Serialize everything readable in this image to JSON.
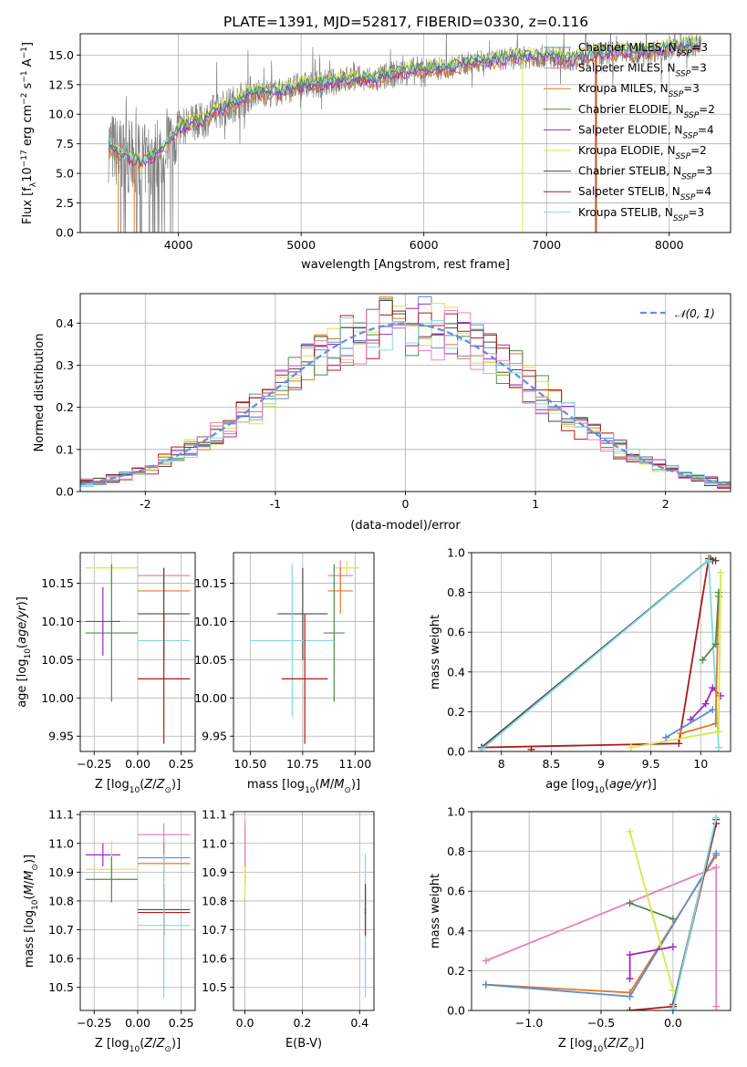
{
  "figure": {
    "title": "PLATE=1391, MJD=52817, FIBERID=0330, z=0.116"
  },
  "colors": {
    "gray": "#808080",
    "blue": "#5b8ed6",
    "orange": "#e07b28",
    "green": "#4f8a4f",
    "purple": "#9c27c8",
    "yellow": "#d6e84a",
    "darkgray": "#4a4a4a",
    "red": "#b01818",
    "cyan": "#80dadf",
    "pink": "#e882b8"
  },
  "chart_data": [
    {
      "id": "spectrum",
      "type": "line",
      "xlabel": "wavelength [Angstrom, rest frame]",
      "ylabel": "Flux [f_λ10^-17 erg cm^-2 s^-1 A^-1]",
      "xlim": [
        3200,
        8500
      ],
      "ylim": [
        0,
        16.8
      ],
      "xticks": [
        4000,
        5000,
        6000,
        7000,
        8000
      ],
      "yticks": [
        0.0,
        2.5,
        5.0,
        7.5,
        10.0,
        12.5,
        15.0
      ],
      "legend_position": "right",
      "series": [
        {
          "name": "Chabrier MILES, N_SSP=3",
          "color": "blue"
        },
        {
          "name": "Salpeter MILES, N_SSP=3",
          "color": "pink"
        },
        {
          "name": "Kroupa MILES, N_SSP=3",
          "color": "orange"
        },
        {
          "name": "Chabrier ELODIE, N_SSP=2",
          "color": "green"
        },
        {
          "name": "Salpeter ELODIE, N_SSP=4",
          "color": "purple"
        },
        {
          "name": "Kroupa ELODIE, N_SSP=2",
          "color": "yellow"
        },
        {
          "name": "Chabrier STELIB, N_SSP=3",
          "color": "darkgray"
        },
        {
          "name": "Salpeter STELIB, N_SSP=4",
          "color": "red"
        },
        {
          "name": "Kroupa STELIB, N_SSP=3",
          "color": "cyan"
        }
      ],
      "model_curve": {
        "x": [
          3430,
          3500,
          3600,
          3700,
          3800,
          3900,
          4000,
          4100,
          4200,
          4300,
          4400,
          4500,
          4600,
          4800,
          5000,
          5200,
          5400,
          5600,
          5800,
          6000,
          6200,
          6400,
          6600,
          6800,
          7000,
          7200,
          7400,
          7600,
          7800,
          8000,
          8200,
          8260
        ],
        "y": [
          7.4,
          6.8,
          6.3,
          5.9,
          6.4,
          7.4,
          8.7,
          9.3,
          9.4,
          10.3,
          10.6,
          11.2,
          11.8,
          11.8,
          12.4,
          12.6,
          13.0,
          12.9,
          13.5,
          13.8,
          13.9,
          14.4,
          14.6,
          14.8,
          14.9,
          14.6,
          15.1,
          15.3,
          15.2,
          15.6,
          15.8,
          15.8
        ]
      },
      "fit_curves": [
        {
          "color": "orange",
          "dy": -0.3
        },
        {
          "color": "yellow",
          "dy": 0.4
        },
        {
          "color": "cyan",
          "dy": 0.1
        },
        {
          "color": "purple",
          "dy": -0.1
        },
        {
          "color": "green",
          "dy": 0.2
        }
      ]
    },
    {
      "id": "residual-histogram",
      "type": "line",
      "xlabel": "(data-model)/error",
      "ylabel": "Normed distribution",
      "xlim": [
        -2.5,
        2.5
      ],
      "ylim": [
        0,
        0.47
      ],
      "xticks": [
        -2,
        -1,
        0,
        1,
        2
      ],
      "yticks": [
        0.0,
        0.1,
        0.2,
        0.3,
        0.4
      ],
      "legend": "𝒩(0, 1)",
      "legend_position": "top-right",
      "bin_width": 0.1,
      "bin_start": -2.5,
      "hist_colors": [
        "blue",
        "orange",
        "green",
        "purple",
        "yellow",
        "darkgray",
        "red",
        "cyan",
        "pink"
      ]
    },
    {
      "id": "z-vs-age",
      "type": "scatter",
      "xlabel": "Z [log10(Z/Z⊙)]",
      "ylabel": "age [log10(age/yr)]",
      "xlim": [
        -0.33,
        0.33
      ],
      "ylim": [
        9.93,
        10.19
      ],
      "xticks": [
        -0.25,
        0.0,
        0.25
      ],
      "xticklabels": [
        "−0.25",
        "0.00",
        "0.25"
      ],
      "yticks": [
        9.95,
        10.0,
        10.05,
        10.1,
        10.15
      ],
      "yticklabels": [
        "9.95",
        "10.00",
        "10.05",
        "10.10",
        "10.15"
      ],
      "points": [
        {
          "x": -0.15,
          "xerr": 0.15,
          "y": 10.17,
          "yerr": 0.03,
          "color": "yellow"
        },
        {
          "x": -0.15,
          "xerr": 0.15,
          "y": 10.085,
          "yerr": 0.09,
          "color": "green"
        },
        {
          "x": -0.2,
          "xerr": 0.1,
          "y": 10.1,
          "yerr": 0.045,
          "color": "purple"
        },
        {
          "x": 0.15,
          "xerr": 0.15,
          "y": 10.16,
          "yerr": 0.01,
          "color": "pink"
        },
        {
          "x": 0.15,
          "xerr": 0.15,
          "y": 10.14,
          "yerr": 0.01,
          "color": "orange"
        },
        {
          "x": 0.15,
          "xerr": 0.15,
          "y": 10.11,
          "yerr": 0.06,
          "color": "darkgray"
        },
        {
          "x": 0.15,
          "xerr": 0.15,
          "y": 10.075,
          "yerr": 0.01,
          "color": "cyan"
        },
        {
          "x": 0.15,
          "xerr": 0.15,
          "y": 10.025,
          "yerr": 0.085,
          "color": "red"
        }
      ]
    },
    {
      "id": "mass-vs-age",
      "type": "scatter",
      "xlabel": "mass [log10(M/M⊙)]",
      "ylabel": "",
      "xlim": [
        10.42,
        11.09
      ],
      "ylim": [
        9.93,
        10.19
      ],
      "xticks": [
        10.5,
        10.75,
        11.0
      ],
      "xticklabels": [
        "10.50",
        "10.75",
        "11.00"
      ],
      "yticks": [
        9.95,
        10.0,
        10.05,
        10.1,
        10.15
      ],
      "yticklabels": [
        "9.95",
        "10.00",
        "10.05",
        "10.10",
        "10.15"
      ],
      "points": [
        {
          "x": 10.96,
          "xerr": 0.06,
          "y": 10.17,
          "yerr": 0.01,
          "color": "yellow"
        },
        {
          "x": 10.93,
          "xerr": 0.06,
          "y": 10.16,
          "yerr": 0.02,
          "color": "pink"
        },
        {
          "x": 10.93,
          "xerr": 0.06,
          "y": 10.14,
          "yerr": 0.03,
          "color": "orange"
        },
        {
          "x": 10.9,
          "xerr": 0.05,
          "y": 10.085,
          "yerr": 0.09,
          "color": "green"
        },
        {
          "x": 10.75,
          "xerr": 0.12,
          "y": 10.11,
          "yerr": 0.06,
          "color": "darkgray"
        },
        {
          "x": 10.7,
          "xerr": 0.2,
          "y": 10.075,
          "yerr": 0.1,
          "color": "cyan"
        },
        {
          "x": 10.76,
          "xerr": 0.11,
          "y": 10.025,
          "yerr": 0.085,
          "color": "red"
        }
      ]
    },
    {
      "id": "age-vs-weight",
      "type": "line",
      "xlabel": "age [log10(age/yr)]",
      "ylabel": "mass weight",
      "xlim": [
        7.7,
        10.3
      ],
      "ylim": [
        0,
        1.0
      ],
      "xticks": [
        8.0,
        8.5,
        9.0,
        9.5,
        10.0
      ],
      "yticks": [
        0.0,
        0.2,
        0.4,
        0.6,
        0.8,
        1.0
      ],
      "series": [
        {
          "color": "red",
          "x": [
            7.8,
            9.78,
            10.08,
            10.12
          ],
          "y": [
            0.02,
            0.04,
            0.97,
            0.96
          ]
        },
        {
          "color": "darkgray",
          "x": [
            7.8,
            10.1,
            10.15
          ],
          "y": [
            0.02,
            0.97,
            0.96
          ]
        },
        {
          "color": "cyan",
          "x": [
            7.8,
            10.08,
            10.18
          ],
          "y": [
            0.01,
            0.96,
            0.02
          ]
        },
        {
          "color": "purple",
          "x": [
            9.9,
            10.05,
            10.12,
            10.2
          ],
          "y": [
            0.16,
            0.24,
            0.32,
            0.28
          ]
        },
        {
          "color": "orange",
          "x": [
            9.8,
            10.15,
            10.18
          ],
          "y": [
            0.09,
            0.14,
            0.78
          ]
        },
        {
          "color": "green",
          "x": [
            10.02,
            10.15,
            10.18
          ],
          "y": [
            0.46,
            0.54,
            0.8
          ]
        },
        {
          "color": "yellow",
          "x": [
            9.3,
            10.18,
            10.2
          ],
          "y": [
            0.02,
            0.1,
            0.9
          ]
        },
        {
          "color": "blue",
          "x": [
            9.65,
            10.12
          ],
          "y": [
            0.07,
            0.21
          ]
        },
        {
          "color": "red",
          "x": [
            8.3
          ],
          "y": [
            0.01
          ]
        }
      ]
    },
    {
      "id": "z-vs-mass",
      "type": "scatter",
      "xlabel": "Z [log10(Z/Z⊙)]",
      "ylabel": "mass [log10(M/M⊙)]",
      "xlim": [
        -0.33,
        0.33
      ],
      "ylim": [
        10.42,
        11.11
      ],
      "xticks": [
        -0.25,
        0.0,
        0.25
      ],
      "xticklabels": [
        "−0.25",
        "0.00",
        "0.25"
      ],
      "yticks": [
        10.5,
        10.6,
        10.7,
        10.8,
        10.9,
        11.0,
        11.1
      ],
      "yticklabels": [
        "10.5",
        "10.6",
        "10.7",
        "10.8",
        "10.9",
        "11.0",
        "11.1"
      ],
      "points": [
        {
          "x": -0.2,
          "xerr": 0.1,
          "y": 10.96,
          "yerr": 0.04,
          "color": "purple"
        },
        {
          "x": -0.15,
          "xerr": 0.15,
          "y": 10.91,
          "yerr": 0.1,
          "color": "yellow"
        },
        {
          "x": -0.15,
          "xerr": 0.15,
          "y": 10.875,
          "yerr": 0.08,
          "color": "green"
        },
        {
          "x": 0.15,
          "xerr": 0.15,
          "y": 11.03,
          "yerr": 0.04,
          "color": "pink"
        },
        {
          "x": 0.15,
          "xerr": 0.15,
          "y": 10.95,
          "yerr": 0.05,
          "color": "blue"
        },
        {
          "x": 0.15,
          "xerr": 0.15,
          "y": 10.93,
          "yerr": 0.06,
          "color": "orange"
        },
        {
          "x": 0.15,
          "xerr": 0.15,
          "y": 10.77,
          "yerr": 0.09,
          "color": "darkgray"
        },
        {
          "x": 0.15,
          "xerr": 0.15,
          "y": 10.76,
          "yerr": 0.08,
          "color": "red"
        },
        {
          "x": 0.15,
          "xerr": 0.15,
          "y": 10.715,
          "yerr": 0.25,
          "color": "cyan"
        }
      ]
    },
    {
      "id": "ebv-vs-mass",
      "type": "scatter",
      "xlabel": "E(B-V)",
      "ylabel": "",
      "xlim": [
        -0.04,
        0.45
      ],
      "ylim": [
        10.42,
        11.11
      ],
      "xticks": [
        0.0,
        0.2,
        0.4
      ],
      "xticklabels": [
        "0.0",
        "0.2",
        "0.4"
      ],
      "yticks": [
        10.5,
        10.6,
        10.7,
        10.8,
        10.9,
        11.0,
        11.1
      ],
      "yticklabels": [
        "10.5",
        "10.6",
        "10.7",
        "10.8",
        "10.9",
        "11.0",
        "11.1"
      ],
      "points": [
        {
          "x": 0.0,
          "xerr": 0.002,
          "y": 10.96,
          "yerr": 0.1,
          "color": "purple"
        },
        {
          "x": 0.0,
          "xerr": 0.002,
          "y": 10.91,
          "yerr": 0.1,
          "color": "yellow"
        },
        {
          "x": 0.0,
          "xerr": 0.002,
          "y": 11.0,
          "yerr": 0.08,
          "color": "pink"
        },
        {
          "x": 0.42,
          "xerr": 0.003,
          "y": 10.76,
          "yerr": 0.09,
          "color": "red"
        },
        {
          "x": 0.42,
          "xerr": 0.003,
          "y": 10.715,
          "yerr": 0.25,
          "color": "cyan"
        },
        {
          "x": 0.42,
          "xerr": 0.003,
          "y": 10.77,
          "yerr": 0.09,
          "color": "darkgray"
        }
      ]
    },
    {
      "id": "z-vs-weight",
      "type": "line",
      "xlabel": "Z [log10(Z/Z⊙)]",
      "ylabel": "mass weight",
      "xlim": [
        -1.4,
        0.4
      ],
      "ylim": [
        0,
        1.0
      ],
      "xticks": [
        -1.0,
        -0.5,
        0.0
      ],
      "xticklabels": [
        "−1.0",
        "−0.5",
        "0.0"
      ],
      "yticks": [
        0.0,
        0.2,
        0.4,
        0.6,
        0.8,
        1.0
      ],
      "series": [
        {
          "color": "pink",
          "x": [
            -1.3,
            0.3,
            0.3
          ],
          "y": [
            0.25,
            0.72,
            0.02
          ]
        },
        {
          "color": "orange",
          "x": [
            -1.3,
            -0.3,
            0.3
          ],
          "y": [
            0.13,
            0.09,
            0.78
          ]
        },
        {
          "color": "blue",
          "x": [
            -1.3,
            -0.3,
            0.3
          ],
          "y": [
            0.13,
            0.07,
            0.79
          ]
        },
        {
          "color": "green",
          "x": [
            -0.3,
            0.0
          ],
          "y": [
            0.54,
            0.46
          ]
        },
        {
          "color": "yellow",
          "x": [
            -0.3,
            0.0
          ],
          "y": [
            0.9,
            0.1
          ]
        },
        {
          "color": "purple",
          "x": [
            -0.3,
            -0.3,
            0.0
          ],
          "y": [
            0.16,
            0.28,
            0.32
          ]
        },
        {
          "color": "red",
          "x": [
            -0.3,
            0.0,
            0.3
          ],
          "y": [
            0.0,
            0.02,
            0.94
          ]
        },
        {
          "color": "darkgray",
          "x": [
            0.0,
            0.3
          ],
          "y": [
            0.03,
            0.96
          ]
        },
        {
          "color": "cyan",
          "x": [
            0.0,
            0.3
          ],
          "y": [
            0.01,
            0.97
          ]
        }
      ]
    }
  ]
}
